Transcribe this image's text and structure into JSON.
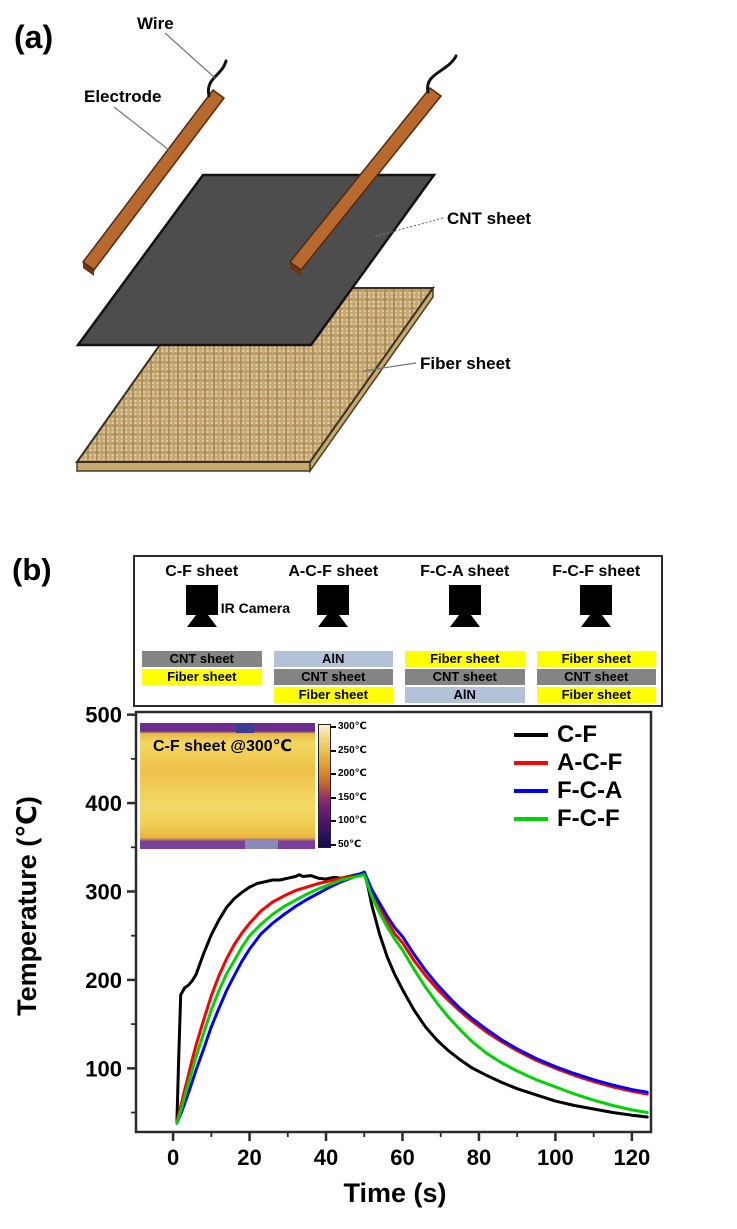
{
  "panel_a": {
    "label": "(a)",
    "wire": "Wire",
    "electrode": "Electrode",
    "cnt": "CNT sheet",
    "fiber": "Fiber sheet"
  },
  "panel_b": {
    "label": "(b)",
    "ir_camera": "IR Camera",
    "setups": [
      {
        "name": "C-F sheet",
        "layers": [
          {
            "label": "CNT sheet",
            "type": "cnt"
          },
          {
            "label": "Fiber sheet",
            "type": "fiber"
          }
        ]
      },
      {
        "name": "A-C-F sheet",
        "layers": [
          {
            "label": "AlN",
            "type": "aln"
          },
          {
            "label": "CNT sheet",
            "type": "cnt"
          },
          {
            "label": "Fiber sheet",
            "type": "fiber"
          }
        ]
      },
      {
        "name": "F-C-A sheet",
        "layers": [
          {
            "label": "Fiber sheet",
            "type": "fiber"
          },
          {
            "label": "CNT sheet",
            "type": "cnt"
          },
          {
            "label": "AlN",
            "type": "aln"
          }
        ]
      },
      {
        "name": "F-C-F sheet",
        "layers": [
          {
            "label": "Fiber sheet",
            "type": "fiber"
          },
          {
            "label": "CNT sheet",
            "type": "cnt"
          },
          {
            "label": "Fiber sheet",
            "type": "fiber"
          }
        ]
      }
    ],
    "inset": {
      "caption": "C-F sheet @300℃",
      "colorbar_labels": [
        "300℃",
        "250℃",
        "200℃",
        "150℃",
        "100℃",
        "50℃"
      ]
    }
  },
  "palette": {
    "copper_light": "#cd7f3f",
    "copper_mid": "#b5672c",
    "copper_dark": "#8f4a1c",
    "copper_edge": "#6e3410",
    "cnt_sheet": "#4d4d4d",
    "fiber_base": "#ddc69a",
    "fiber_dark": "#b3945f",
    "fiber_mid": "#cbb080",
    "fiber_mid2": "#c2a36c",
    "fiber_dark2": "#a98c58",
    "fiber_side": "#c6a96f",
    "layer_cnt": "#848484",
    "layer_fiber": "#ffff00",
    "layer_aln": "#b3c2d8"
  },
  "chart_data": {
    "type": "line",
    "title": "",
    "xlabel": "Time (s)",
    "ylabel": "Temperature (℃)",
    "xlim": [
      -9.7,
      125
    ],
    "ylim": [
      28,
      503
    ],
    "xticks": [
      0,
      20,
      40,
      60,
      80,
      100,
      120
    ],
    "xticks_minor": [
      10,
      30,
      50,
      70,
      90,
      110
    ],
    "yticks": [
      100,
      200,
      300,
      400,
      500
    ],
    "yticks_minor": [
      50,
      150,
      250,
      350,
      450
    ],
    "grid": false,
    "legend_position": "top-right",
    "series": [
      {
        "name": "C-F",
        "color": "#000000",
        "x": [
          1,
          1.5,
          2,
          3,
          4,
          5,
          6,
          8,
          10,
          12,
          14,
          16,
          18,
          20,
          22,
          24,
          26,
          28,
          30,
          32,
          33,
          34,
          36,
          38,
          40,
          42,
          44,
          46,
          48,
          50,
          51,
          52,
          54,
          56,
          58,
          60,
          63,
          66,
          69,
          72,
          75,
          78,
          82,
          86,
          90,
          95,
          100,
          105,
          110,
          115,
          120,
          124
        ],
        "y": [
          40,
          115,
          183,
          191,
          194,
          199,
          206,
          230,
          251,
          268,
          282,
          292,
          299,
          305,
          309,
          311,
          313,
          313,
          315,
          317,
          319,
          317,
          318,
          315,
          314,
          316,
          315,
          317,
          319,
          321,
          305,
          284,
          252,
          226,
          206,
          189,
          166,
          147,
          132,
          120,
          110,
          101,
          92,
          84,
          77,
          70,
          63,
          58,
          54,
          50,
          47,
          45
        ]
      },
      {
        "name": "A-C-F",
        "color": "#ff0000",
        "x": [
          1,
          2,
          3,
          4,
          5,
          6,
          8,
          10,
          12,
          14,
          16,
          18,
          20,
          23,
          26,
          29,
          32,
          35,
          38,
          41,
          44,
          47,
          50,
          52,
          54,
          56,
          58,
          60,
          63,
          66,
          69,
          72,
          75,
          78,
          82,
          86,
          90,
          95,
          100,
          105,
          110,
          115,
          120,
          124
        ],
        "y": [
          40,
          57,
          75,
          92,
          110,
          126,
          155,
          182,
          205,
          224,
          240,
          253,
          264,
          278,
          288,
          295,
          301,
          305,
          309,
          312,
          315,
          317,
          320,
          298,
          282,
          266,
          252,
          242,
          222,
          205,
          190,
          177,
          165,
          154,
          141,
          130,
          120,
          109,
          100,
          92,
          85,
          79,
          74,
          71
        ]
      },
      {
        "name": "F-C-A",
        "color": "#0000ff",
        "x": [
          1,
          2,
          3,
          4,
          5,
          6,
          8,
          10,
          12,
          14,
          16,
          18,
          20,
          23,
          26,
          29,
          32,
          35,
          38,
          41,
          44,
          47,
          50,
          52,
          54,
          56,
          58,
          60,
          63,
          66,
          69,
          72,
          75,
          78,
          82,
          86,
          90,
          95,
          100,
          105,
          110,
          115,
          120,
          124
        ],
        "y": [
          38,
          48,
          60,
          72,
          85,
          98,
          122,
          147,
          168,
          188,
          205,
          221,
          235,
          252,
          264,
          274,
          283,
          291,
          298,
          305,
          311,
          316,
          322,
          302,
          287,
          272,
          259,
          249,
          229,
          211,
          195,
          181,
          168,
          157,
          144,
          132,
          122,
          111,
          102,
          94,
          87,
          81,
          76,
          73
        ]
      },
      {
        "name": "F-C-F",
        "color": "#00d400",
        "x": [
          1,
          2,
          3,
          4,
          5,
          6,
          8,
          10,
          12,
          14,
          16,
          18,
          20,
          23,
          26,
          29,
          32,
          35,
          38,
          41,
          44,
          47,
          50,
          52,
          54,
          56,
          58,
          60,
          63,
          66,
          69,
          72,
          75,
          78,
          82,
          86,
          90,
          95,
          100,
          105,
          110,
          115,
          120,
          124
        ],
        "y": [
          38,
          52,
          68,
          83,
          98,
          113,
          140,
          166,
          188,
          207,
          222,
          237,
          250,
          263,
          274,
          283,
          290,
          297,
          303,
          308,
          313,
          316,
          319,
          294,
          276,
          260,
          246,
          234,
          212,
          192,
          174,
          158,
          144,
          131,
          117,
          106,
          97,
          87,
          79,
          71,
          64,
          58,
          53,
          50
        ]
      }
    ]
  }
}
